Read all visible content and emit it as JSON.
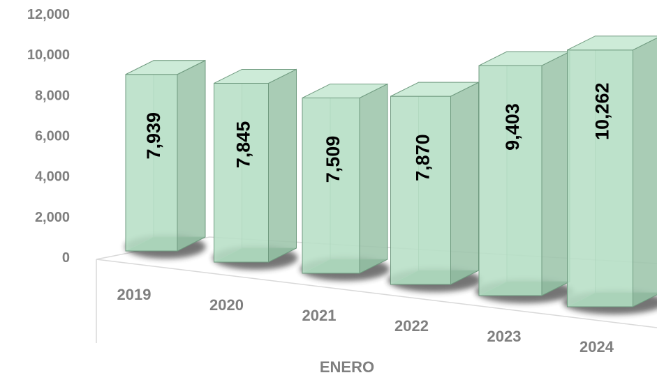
{
  "chart_data": {
    "type": "bar",
    "style": "3d-columns",
    "categories": [
      "2019",
      "2020",
      "2021",
      "2022",
      "2023",
      "2024"
    ],
    "values": [
      7939,
      7845,
      7509,
      7870,
      9403,
      10262
    ],
    "value_labels": [
      "7,939",
      "7,845",
      "7,509",
      "7,870",
      "9,403",
      "10,262"
    ],
    "title": "",
    "xlabel": "ENERO",
    "ylabel": "",
    "ylim": [
      0,
      12000
    ],
    "yticks": [
      "0",
      "2,000",
      "4,000",
      "6,000",
      "8,000",
      "10,000",
      "12,000"
    ],
    "grid": false,
    "legend": "none",
    "colors": {
      "bar_front": "#b7dfc6",
      "bar_side": "#9dc4ac",
      "bar_top": "#cdebd8",
      "bar_edge": "#6f9a7f",
      "bar_base": "#4c7d5e",
      "axis_text": "#7f7f7f",
      "floor_line": "#d9d9d9"
    }
  }
}
